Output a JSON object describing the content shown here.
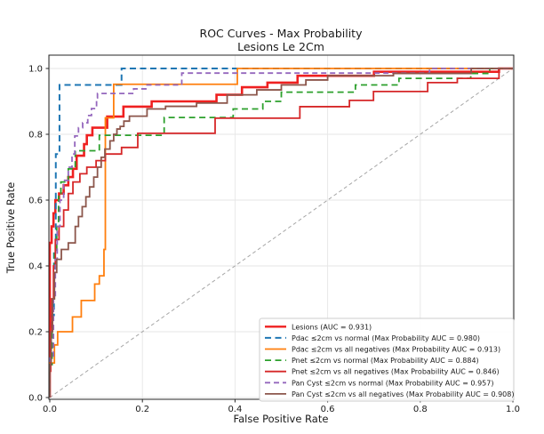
{
  "chart_data": {
    "type": "line",
    "subtype": "roc-step-curves",
    "title": "ROC Curves - Max Probability\nLesions Le 2Cm",
    "title_line1": "ROC Curves - Max Probability",
    "title_line2": "Lesions Le 2Cm",
    "xlabel": "False Positive Rate",
    "ylabel": "True Positive Rate",
    "xlim": [
      0,
      1
    ],
    "ylim": [
      0,
      1.05
    ],
    "xtick_labels": [
      "0.0",
      "0.2",
      "0.4",
      "0.6",
      "0.8",
      "1.0"
    ],
    "ytick_labels": [
      "0.0",
      "0.2",
      "0.4",
      "0.6",
      "0.8",
      "1.0"
    ],
    "grid": true,
    "legend_position": "lower right",
    "style": {
      "grid_color": "#e6e6e6",
      "spine_color": "#262626",
      "background": "#ffffff",
      "legend_border": "#cccccc",
      "legend_fill": "#ffffff",
      "text_color": "#1a1a1a"
    },
    "diagonal_reference": {
      "from": [
        0,
        0
      ],
      "to": [
        1,
        1
      ],
      "color": "#a6a6a6",
      "dash": "4,3",
      "width": 1
    },
    "series": [
      {
        "id": "lesions",
        "label": "Lesions (AUC = 0.931)",
        "auc": 0.931,
        "color": "#ef2020",
        "dash": null,
        "width": 2.6,
        "points": [
          [
            0,
            0.47
          ],
          [
            0.004,
            0.52
          ],
          [
            0.008,
            0.56
          ],
          [
            0.012,
            0.6
          ],
          [
            0.02,
            0.62
          ],
          [
            0.03,
            0.645
          ],
          [
            0.04,
            0.67
          ],
          [
            0.05,
            0.695
          ],
          [
            0.058,
            0.735
          ],
          [
            0.074,
            0.77
          ],
          [
            0.08,
            0.797
          ],
          [
            0.092,
            0.82
          ],
          [
            0.124,
            0.854
          ],
          [
            0.159,
            0.884
          ],
          [
            0.22,
            0.9
          ],
          [
            0.36,
            0.92
          ],
          [
            0.415,
            0.943
          ],
          [
            0.47,
            0.957
          ],
          [
            0.535,
            0.978
          ],
          [
            0.7,
            0.99
          ],
          [
            0.97,
            1.0
          ],
          [
            1,
            1
          ]
        ]
      },
      {
        "id": "pdac-vs-normal",
        "label": "Pdac ≤2cm vs normal (Max Probability AUC = 0.980)",
        "auc": 0.98,
        "color": "#1f77b4",
        "dash": "7,4.5",
        "width": 2.0,
        "points": [
          [
            0,
            0.1
          ],
          [
            0.004,
            0.25
          ],
          [
            0.009,
            0.45
          ],
          [
            0.013,
            0.74
          ],
          [
            0.021,
            0.95
          ],
          [
            0.155,
            1.0
          ],
          [
            1,
            1
          ]
        ]
      },
      {
        "id": "pdac-vs-all-negatives",
        "label": "Pdac ≤2cm vs all negatives (Max Probability AUC = 0.913)",
        "auc": 0.913,
        "color": "#ff7f0e",
        "dash": null,
        "width": 1.8,
        "points": [
          [
            0,
            0.105
          ],
          [
            0.01,
            0.16
          ],
          [
            0.017,
            0.2
          ],
          [
            0.049,
            0.245
          ],
          [
            0.068,
            0.295
          ],
          [
            0.097,
            0.345
          ],
          [
            0.107,
            0.37
          ],
          [
            0.117,
            0.45
          ],
          [
            0.12,
            0.85
          ],
          [
            0.138,
            0.952
          ],
          [
            0.405,
            1.0
          ],
          [
            1,
            1
          ]
        ]
      },
      {
        "id": "pnet-vs-normal",
        "label": "Pnet ≤2cm vs normal (Max Probability AUC = 0.884)",
        "auc": 0.884,
        "color": "#2ca02c",
        "dash": "7,4.5",
        "width": 1.8,
        "points": [
          [
            0,
            0.1
          ],
          [
            0.005,
            0.3
          ],
          [
            0.01,
            0.44
          ],
          [
            0.015,
            0.52
          ],
          [
            0.019,
            0.62
          ],
          [
            0.024,
            0.655
          ],
          [
            0.04,
            0.695
          ],
          [
            0.055,
            0.75
          ],
          [
            0.107,
            0.797
          ],
          [
            0.247,
            0.851
          ],
          [
            0.396,
            0.877
          ],
          [
            0.46,
            0.9
          ],
          [
            0.5,
            0.928
          ],
          [
            0.66,
            0.95
          ],
          [
            0.754,
            0.97
          ],
          [
            0.909,
            0.985
          ],
          [
            0.95,
            1.0
          ],
          [
            1,
            1
          ]
        ]
      },
      {
        "id": "pnet-vs-all-negatives",
        "label": "Pnet ≤2cm vs all negatives (Max Probability AUC = 0.846)",
        "auc": 0.846,
        "color": "#d62728",
        "dash": null,
        "width": 1.8,
        "points": [
          [
            0,
            0.08
          ],
          [
            0.002,
            0.2
          ],
          [
            0.004,
            0.3
          ],
          [
            0.008,
            0.4
          ],
          [
            0.012,
            0.48
          ],
          [
            0.02,
            0.52
          ],
          [
            0.03,
            0.57
          ],
          [
            0.04,
            0.62
          ],
          [
            0.05,
            0.655
          ],
          [
            0.065,
            0.68
          ],
          [
            0.08,
            0.7
          ],
          [
            0.1,
            0.72
          ],
          [
            0.12,
            0.74
          ],
          [
            0.155,
            0.76
          ],
          [
            0.19,
            0.803
          ],
          [
            0.357,
            0.849
          ],
          [
            0.54,
            0.884
          ],
          [
            0.647,
            0.903
          ],
          [
            0.699,
            0.93
          ],
          [
            0.816,
            0.957
          ],
          [
            0.88,
            0.97
          ],
          [
            0.97,
            1.0
          ],
          [
            1,
            1
          ]
        ]
      },
      {
        "id": "pan-cyst-vs-normal",
        "label": "Pan Cyst ≤2cm vs normal (Max Probability AUC = 0.957)",
        "auc": 0.957,
        "color": "#9467bd",
        "dash": "6,4",
        "width": 1.8,
        "points": [
          [
            0,
            0.12
          ],
          [
            0.008,
            0.3
          ],
          [
            0.012,
            0.42
          ],
          [
            0.016,
            0.52
          ],
          [
            0.022,
            0.6
          ],
          [
            0.03,
            0.66
          ],
          [
            0.04,
            0.7
          ],
          [
            0.048,
            0.74
          ],
          [
            0.054,
            0.795
          ],
          [
            0.062,
            0.82
          ],
          [
            0.071,
            0.835
          ],
          [
            0.082,
            0.857
          ],
          [
            0.09,
            0.878
          ],
          [
            0.101,
            0.911
          ],
          [
            0.103,
            0.924
          ],
          [
            0.181,
            0.938
          ],
          [
            0.21,
            0.95
          ],
          [
            0.285,
            0.986
          ],
          [
            0.82,
            1.0
          ],
          [
            1,
            1
          ]
        ]
      },
      {
        "id": "pan-cyst-vs-all-negatives",
        "label": "Pan Cyst ≤2cm vs all negatives (Max Probability AUC = 0.908)",
        "auc": 0.908,
        "color": "#8c564b",
        "dash": null,
        "width": 1.8,
        "points": [
          [
            0,
            0.1
          ],
          [
            0.003,
            0.2
          ],
          [
            0.006,
            0.3
          ],
          [
            0.01,
            0.38
          ],
          [
            0.015,
            0.42
          ],
          [
            0.025,
            0.45
          ],
          [
            0.04,
            0.47
          ],
          [
            0.055,
            0.52
          ],
          [
            0.062,
            0.55
          ],
          [
            0.07,
            0.58
          ],
          [
            0.078,
            0.61
          ],
          [
            0.086,
            0.64
          ],
          [
            0.095,
            0.67
          ],
          [
            0.103,
            0.7
          ],
          [
            0.111,
            0.73
          ],
          [
            0.119,
            0.755
          ],
          [
            0.13,
            0.78
          ],
          [
            0.138,
            0.8
          ],
          [
            0.145,
            0.816
          ],
          [
            0.152,
            0.824
          ],
          [
            0.16,
            0.84
          ],
          [
            0.172,
            0.855
          ],
          [
            0.21,
            0.877
          ],
          [
            0.25,
            0.885
          ],
          [
            0.317,
            0.895
          ],
          [
            0.383,
            0.92
          ],
          [
            0.447,
            0.935
          ],
          [
            0.5,
            0.95
          ],
          [
            0.553,
            0.965
          ],
          [
            0.6,
            0.978
          ],
          [
            0.742,
            0.985
          ],
          [
            0.91,
            1.0
          ],
          [
            1,
            1
          ]
        ]
      }
    ]
  }
}
